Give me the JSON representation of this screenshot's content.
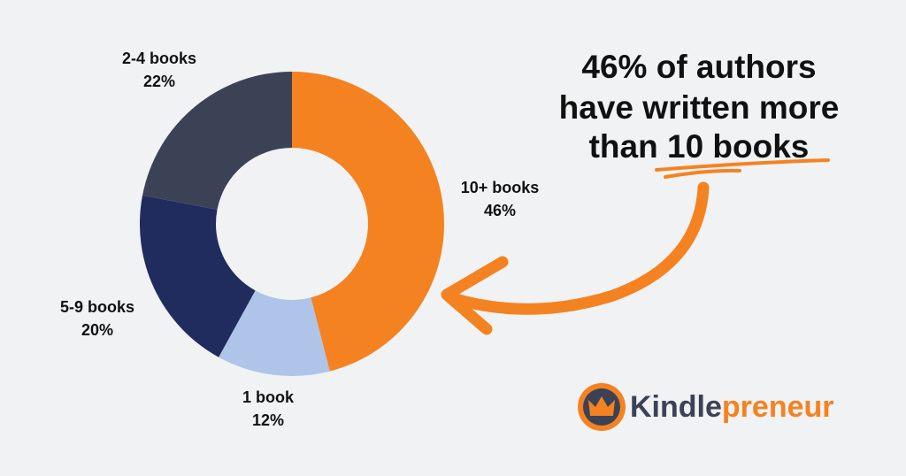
{
  "chart_data": {
    "type": "donut",
    "categories": [
      "10+ books",
      "1 book",
      "5-9 books",
      "2-4 books"
    ],
    "values": [
      46,
      12,
      20,
      22
    ],
    "value_labels": [
      "46%",
      "12%",
      "20%",
      "22%"
    ],
    "colors": [
      "#f58220",
      "#aec4e8",
      "#212c5e",
      "#3c4256"
    ],
    "annotation": [
      "46% of authors",
      "have written more",
      "than 10 books"
    ]
  },
  "brand": {
    "name_parts": [
      "Kindle",
      "preneur"
    ]
  }
}
